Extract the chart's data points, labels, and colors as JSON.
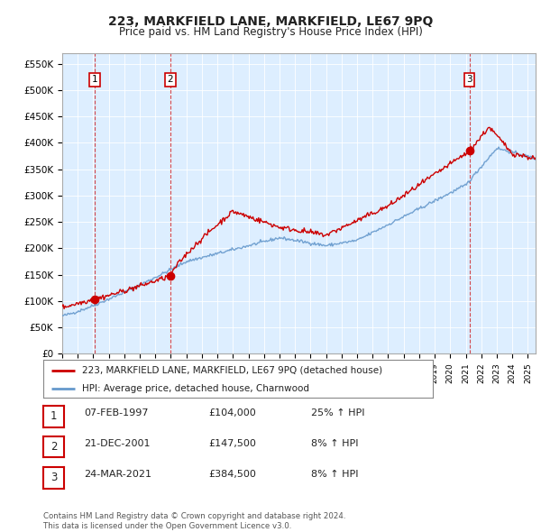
{
  "title": "223, MARKFIELD LANE, MARKFIELD, LE67 9PQ",
  "subtitle": "Price paid vs. HM Land Registry's House Price Index (HPI)",
  "ylabel_ticks": [
    "£0",
    "£50K",
    "£100K",
    "£150K",
    "£200K",
    "£250K",
    "£300K",
    "£350K",
    "£400K",
    "£450K",
    "£500K",
    "£550K"
  ],
  "ytick_values": [
    0,
    50000,
    100000,
    150000,
    200000,
    250000,
    300000,
    350000,
    400000,
    450000,
    500000,
    550000
  ],
  "ylim": [
    0,
    570000
  ],
  "background_color": "#ddeeff",
  "plot_bg": "#ddeeff",
  "red_line_color": "#cc0000",
  "blue_line_color": "#6699cc",
  "dashed_line_color": "#cc0000",
  "sale_points": [
    {
      "year": 1997.1,
      "price": 104000,
      "label": "1"
    },
    {
      "year": 2001.97,
      "price": 147500,
      "label": "2"
    },
    {
      "year": 2021.23,
      "price": 384500,
      "label": "3"
    }
  ],
  "legend_entries": [
    "223, MARKFIELD LANE, MARKFIELD, LE67 9PQ (detached house)",
    "HPI: Average price, detached house, Charnwood"
  ],
  "table_rows": [
    {
      "num": "1",
      "date": "07-FEB-1997",
      "price": "£104,000",
      "change": "25% ↑ HPI"
    },
    {
      "num": "2",
      "date": "21-DEC-2001",
      "price": "£147,500",
      "change": "8% ↑ HPI"
    },
    {
      "num": "3",
      "date": "24-MAR-2021",
      "price": "£384,500",
      "change": "8% ↑ HPI"
    }
  ],
  "footer": "Contains HM Land Registry data © Crown copyright and database right 2024.\nThis data is licensed under the Open Government Licence v3.0.",
  "xmin": 1995,
  "xmax": 2025.5
}
